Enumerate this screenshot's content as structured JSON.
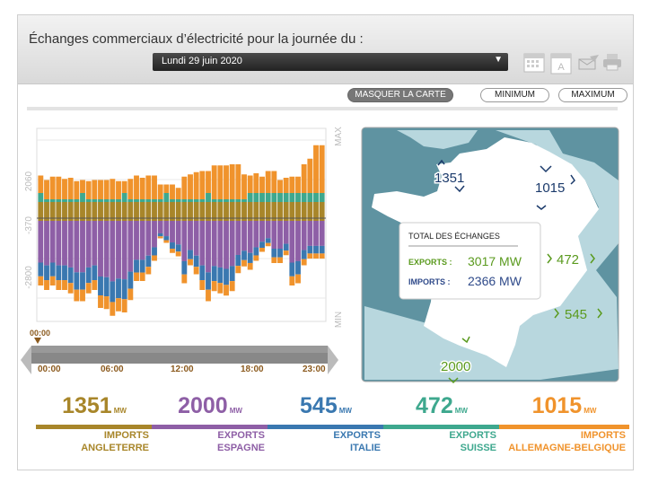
{
  "header": {
    "title": "Échanges commerciaux d’électricité pour la journée du :",
    "date_value": "Lundi 29 juin 2020",
    "icons": [
      "calendar-icon",
      "calendar-a-icon",
      "email-icon",
      "print-icon"
    ]
  },
  "buttons": {
    "hide_map": "MASQUER LA CARTE",
    "minimum": "MINIMUM",
    "maximum": "MAXIMUM"
  },
  "colors": {
    "angleterre": "#a8862a",
    "espagne": "#8e5fa6",
    "italie": "#3a78b0",
    "suisse": "#3ea88e",
    "allemagne": "#f0932c",
    "map_sea": "#5f93a1",
    "map_land": "#ffffff",
    "map_neighbors": "#b8d7de"
  },
  "chart_data": {
    "type": "bar",
    "stacked": true,
    "ytick_labels": [
      "MAX",
      "2060",
      "-370",
      "-2800",
      "MIN"
    ],
    "time_labels": [
      "00:00",
      "06:00",
      "12:00",
      "18:00",
      "23:00"
    ],
    "cursor_label": "00:00",
    "intervals": 48,
    "imports_total_approx": [
      1900,
      1700,
      1850,
      1850,
      1750,
      1800,
      1650,
      1700,
      1650,
      1700,
      1700,
      1700,
      1750,
      1650,
      1650,
      1750,
      1900,
      1800,
      1900,
      1900,
      1500,
      1500,
      1500,
      1350,
      1850,
      1950,
      2050,
      2100,
      2100,
      2350,
      2350,
      2350,
      2400,
      2400,
      1950,
      1900,
      2000,
      1850,
      2100,
      2100,
      1700,
      1800,
      1850,
      1850,
      2400,
      2650,
      3250,
      3250
    ],
    "exports_total_approx": [
      3000,
      3200,
      3000,
      3200,
      3200,
      3350,
      3700,
      3700,
      3350,
      3200,
      4000,
      4050,
      4350,
      4150,
      4200,
      3650,
      2800,
      2800,
      2500,
      1900,
      900,
      1100,
      1550,
      1700,
      2900,
      2100,
      2500,
      3200,
      3700,
      3250,
      3350,
      3450,
      3250,
      2450,
      2150,
      2300,
      1900,
      1500,
      1250,
      2000,
      2000,
      1650,
      3000,
      2900,
      2100,
      1800,
      1800,
      1800
    ]
  },
  "map": {
    "box_title": "TOTAL DES ÉCHANGES",
    "exports_label": "EXPORTS :",
    "exports_value": "3017 MW",
    "imports_label": "IMPORTS :",
    "imports_value": "2366 MW",
    "flow_angleterre": "1351",
    "flow_allemagne": "1015",
    "flow_suisse": "472",
    "flow_italie": "545",
    "flow_espagne": "2000"
  },
  "summary": [
    {
      "value": "1351",
      "unit": "MW",
      "direction": "IMPORTS",
      "country": "ANGLETERRE",
      "color": "#a8862a"
    },
    {
      "value": "2000",
      "unit": "MW",
      "direction": "EXPORTS",
      "country": "ESPAGNE",
      "color": "#8e5fa6"
    },
    {
      "value": "545",
      "unit": "MW",
      "direction": "EXPORTS",
      "country": "ITALIE",
      "color": "#3a78b0"
    },
    {
      "value": "472",
      "unit": "MW",
      "direction": "EXPORTS",
      "country": "SUISSE",
      "color": "#3ea88e"
    },
    {
      "value": "1015",
      "unit": "MW",
      "direction": "IMPORTS",
      "country": "ALLEMAGNE-BELGIQUE",
      "color": "#f0932c"
    }
  ]
}
